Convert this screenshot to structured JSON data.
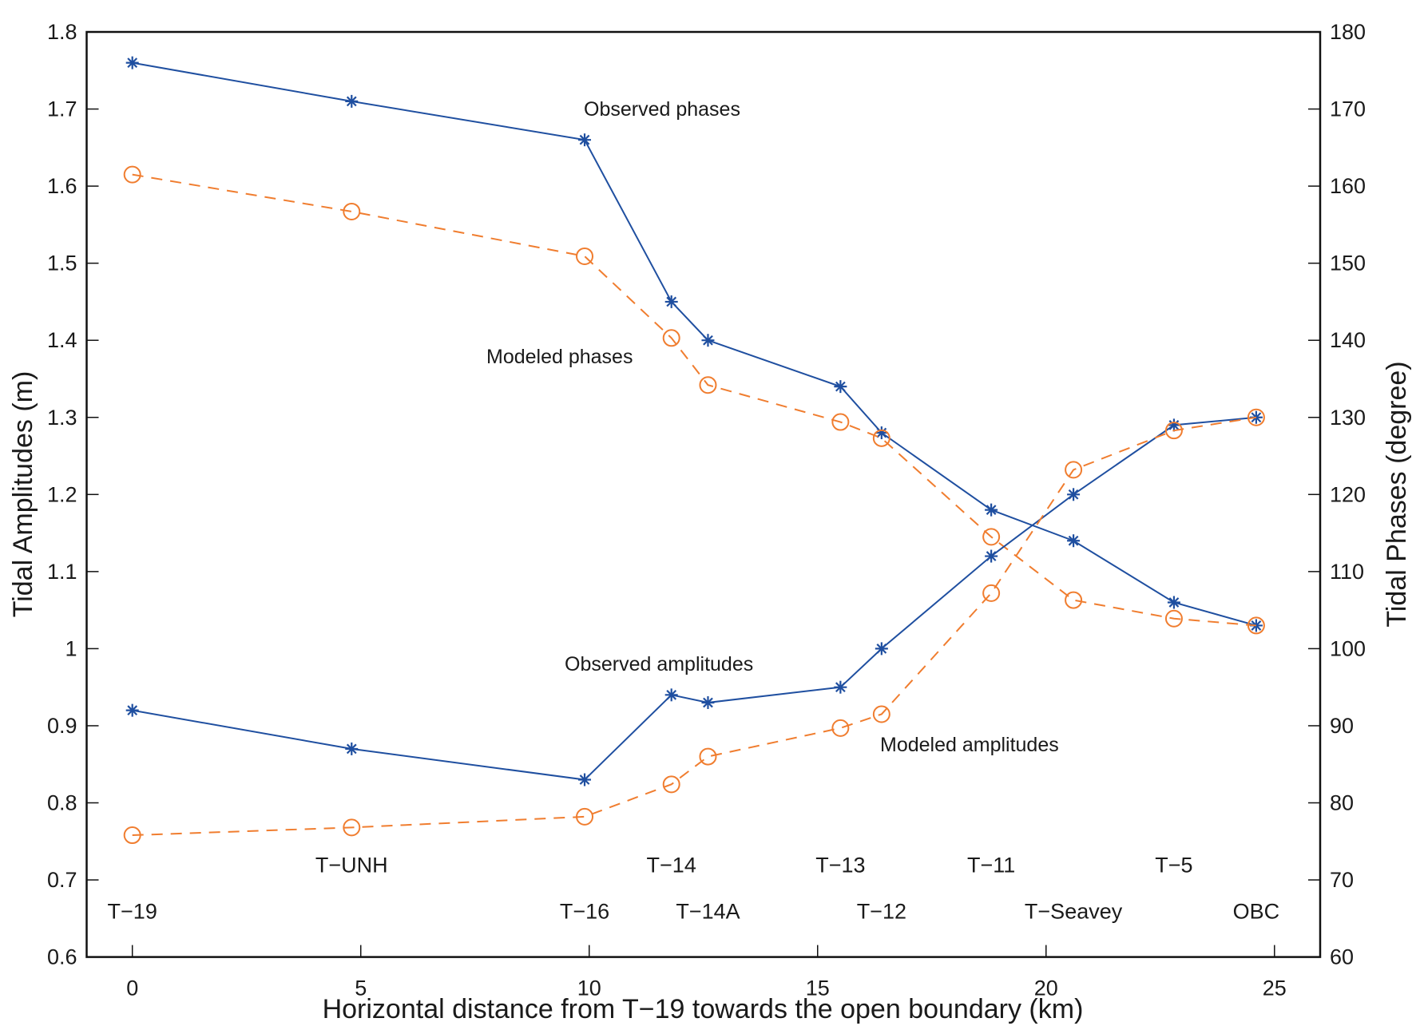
{
  "chart_data": {
    "type": "line",
    "title": "",
    "xlabel": "Horizontal distance from T−19 towards the open boundary (km)",
    "ylabel_left": "Tidal Amplitudes (m)",
    "ylabel_right": "Tidal Phases (degree)",
    "xlim": [
      -1,
      26
    ],
    "ylim_left": [
      0.6,
      1.8
    ],
    "ylim_right": [
      60,
      180
    ],
    "xticks": [
      0,
      5,
      10,
      15,
      20,
      25
    ],
    "xtick_labels": [
      "0",
      "5",
      "10",
      "15",
      "20",
      "25"
    ],
    "yticks_left": [
      0.6,
      0.7,
      0.8,
      0.9,
      1.0,
      1.1,
      1.2,
      1.3,
      1.4,
      1.5,
      1.6,
      1.7,
      1.8
    ],
    "ytick_labels_left": [
      "0.6",
      "0.7",
      "0.8",
      "0.9",
      "1",
      "1.1",
      "1.2",
      "1.3",
      "1.4",
      "1.5",
      "1.6",
      "1.7",
      "1.8"
    ],
    "yticks_right": [
      60,
      70,
      80,
      90,
      100,
      110,
      120,
      130,
      140,
      150,
      160,
      170,
      180
    ],
    "ytick_labels_right": [
      "60",
      "70",
      "80",
      "90",
      "100",
      "110",
      "120",
      "130",
      "140",
      "150",
      "160",
      "170",
      "180"
    ],
    "grid": false,
    "stations": [
      "T−19",
      "T−UNH",
      "T−16",
      "T−14",
      "T−14A",
      "T−13",
      "T−12",
      "T−11",
      "T−Seavey",
      "T−5",
      "OBC"
    ],
    "x": [
      0,
      4.8,
      9.9,
      11.8,
      12.6,
      15.5,
      16.4,
      18.8,
      20.6,
      22.8,
      24.6
    ],
    "series": [
      {
        "name": "Observed phases",
        "axis": "right",
        "style": "solid",
        "marker": "asterisk",
        "color": "#1f4fa0",
        "values": [
          176,
          171,
          166,
          145,
          140,
          134,
          128,
          118,
          114,
          106,
          103
        ]
      },
      {
        "name": "Modeled phases",
        "axis": "right",
        "style": "dashed",
        "marker": "circle",
        "color": "#f07d2f",
        "values": [
          161.5,
          156.7,
          150.9,
          140.3,
          134.2,
          129.4,
          127.3,
          114.5,
          106.3,
          103.9,
          103
        ]
      },
      {
        "name": "Observed amplitudes",
        "axis": "left",
        "style": "solid",
        "marker": "asterisk",
        "color": "#1f4fa0",
        "values": [
          0.92,
          0.87,
          0.83,
          0.94,
          0.93,
          0.95,
          1.0,
          1.12,
          1.2,
          1.29,
          1.3
        ]
      },
      {
        "name": "Modeled amplitudes",
        "axis": "left",
        "style": "dashed",
        "marker": "circle",
        "color": "#f07d2f",
        "values": [
          0.758,
          0.768,
          0.782,
          0.824,
          0.86,
          0.897,
          0.915,
          1.072,
          1.232,
          1.283,
          1.3
        ]
      }
    ]
  }
}
